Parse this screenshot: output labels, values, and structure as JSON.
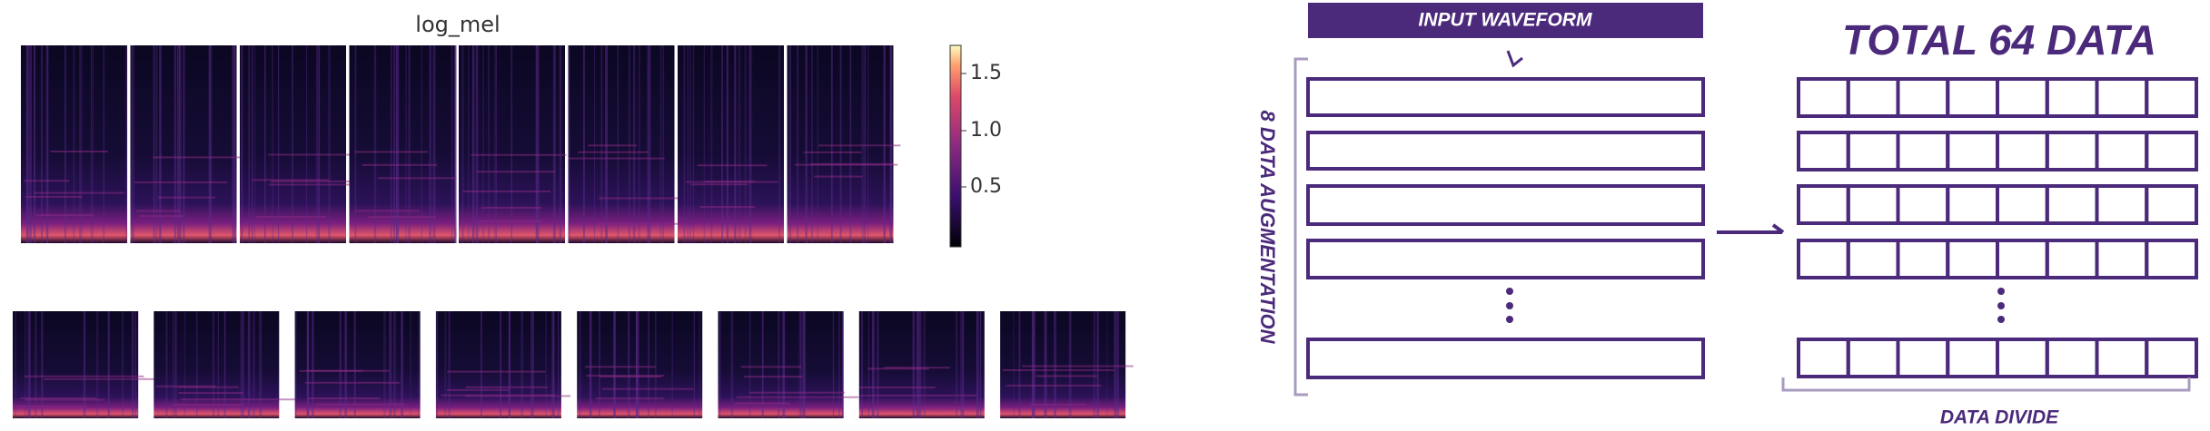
{
  "spectrogram_panel": {
    "title": "log_mel",
    "colorbar": {
      "ticks": [
        "1.5",
        "1.0",
        "0.5"
      ]
    }
  },
  "pipeline": {
    "input_label": "INPUT WAVEFORM",
    "augmentation_label": "8 DATA AUGMENTATION",
    "output_title": "TOTAL 64 DATA",
    "divide_label": "DATA DIVIDE"
  }
}
